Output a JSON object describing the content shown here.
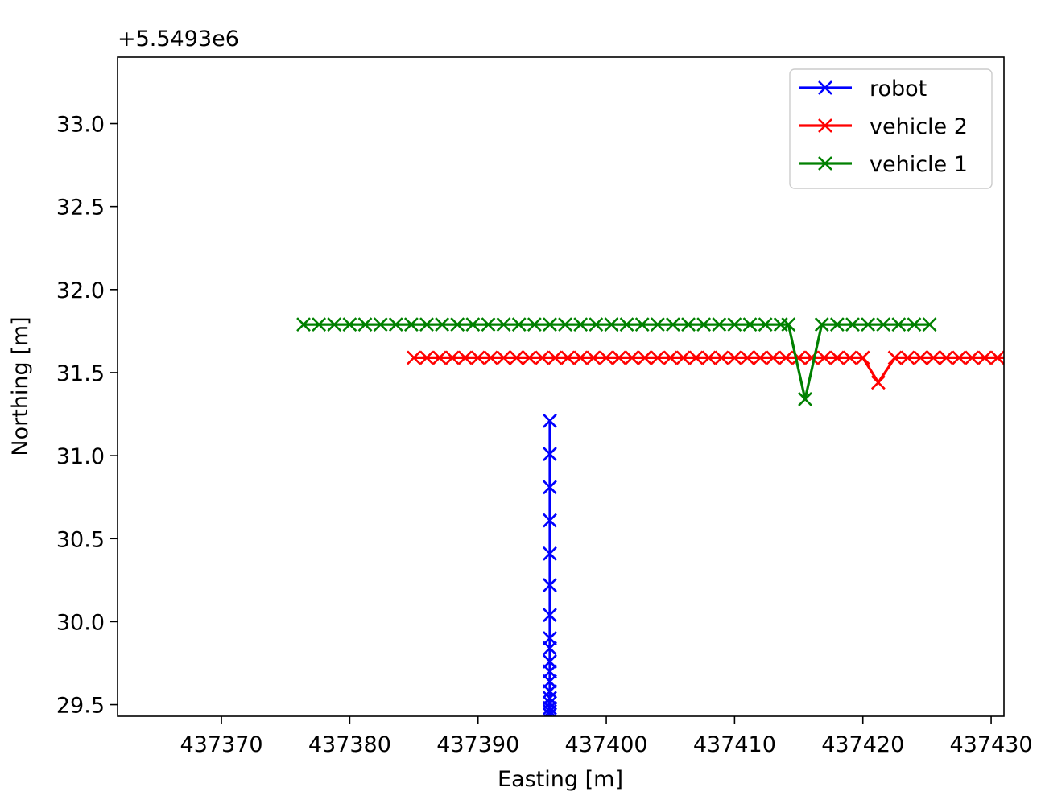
{
  "chart_data": {
    "type": "line",
    "title": "",
    "xlabel": "Easting [m]",
    "ylabel": "Northing [m]",
    "y_offset_label": "+5.5493e6",
    "xlim": [
      437361.9,
      437431.0
    ],
    "ylim": [
      29.43,
      33.4
    ],
    "xticks": [
      437370,
      437380,
      437390,
      437400,
      437410,
      437420,
      437430
    ],
    "xtick_labels": [
      "437370",
      "437380",
      "437390",
      "437400",
      "437410",
      "437420",
      "437430"
    ],
    "yticks": [
      29.5,
      30.0,
      30.5,
      31.0,
      31.5,
      32.0,
      32.5,
      33.0
    ],
    "ytick_labels": [
      "29.5",
      "30.0",
      "30.5",
      "31.0",
      "31.5",
      "32.0",
      "32.5",
      "33.0"
    ],
    "grid": false,
    "legend_position": "top-right",
    "series": [
      {
        "name": "robot",
        "color": "#0000ff",
        "marker": "x",
        "points": [
          [
            437395.6,
            31.21
          ],
          [
            437395.6,
            31.01
          ],
          [
            437395.6,
            30.81
          ],
          [
            437395.6,
            30.61
          ],
          [
            437395.6,
            30.41
          ],
          [
            437395.6,
            30.22
          ],
          [
            437395.6,
            30.04
          ],
          [
            437395.6,
            29.9
          ],
          [
            437395.6,
            29.84
          ],
          [
            437395.6,
            29.76
          ],
          [
            437395.6,
            29.7
          ],
          [
            437395.6,
            29.64
          ],
          [
            437395.6,
            29.58
          ],
          [
            437395.6,
            29.54
          ],
          [
            437395.6,
            29.51
          ],
          [
            437395.6,
            29.48
          ],
          [
            437395.6,
            29.46
          ],
          [
            437395.6,
            29.44
          ]
        ]
      },
      {
        "name": "vehicle 2",
        "color": "#ff0000",
        "marker": "x",
        "points": [
          [
            437385.0,
            31.59
          ],
          [
            437386.0,
            31.59
          ],
          [
            437387.0,
            31.59
          ],
          [
            437388.0,
            31.59
          ],
          [
            437389.0,
            31.59
          ],
          [
            437390.0,
            31.59
          ],
          [
            437391.0,
            31.59
          ],
          [
            437392.0,
            31.59
          ],
          [
            437393.0,
            31.59
          ],
          [
            437394.0,
            31.59
          ],
          [
            437395.0,
            31.59
          ],
          [
            437396.0,
            31.59
          ],
          [
            437397.0,
            31.59
          ],
          [
            437398.0,
            31.59
          ],
          [
            437399.0,
            31.59
          ],
          [
            437400.0,
            31.59
          ],
          [
            437401.0,
            31.59
          ],
          [
            437402.0,
            31.59
          ],
          [
            437403.0,
            31.59
          ],
          [
            437404.0,
            31.59
          ],
          [
            437405.0,
            31.59
          ],
          [
            437406.0,
            31.59
          ],
          [
            437407.0,
            31.59
          ],
          [
            437408.0,
            31.59
          ],
          [
            437409.0,
            31.59
          ],
          [
            437410.0,
            31.59
          ],
          [
            437411.0,
            31.59
          ],
          [
            437412.0,
            31.59
          ],
          [
            437413.0,
            31.59
          ],
          [
            437414.0,
            31.59
          ],
          [
            437415.0,
            31.59
          ],
          [
            437416.0,
            31.59
          ],
          [
            437417.0,
            31.59
          ],
          [
            437418.0,
            31.59
          ],
          [
            437419.0,
            31.59
          ],
          [
            437420.0,
            31.59
          ],
          [
            437421.2,
            31.44
          ],
          [
            437422.5,
            31.59
          ],
          [
            437423.5,
            31.59
          ],
          [
            437424.5,
            31.59
          ],
          [
            437425.5,
            31.59
          ],
          [
            437426.5,
            31.59
          ],
          [
            437427.5,
            31.59
          ],
          [
            437428.5,
            31.59
          ],
          [
            437429.5,
            31.59
          ],
          [
            437430.5,
            31.59
          ],
          [
            437431.5,
            31.59
          ]
        ]
      },
      {
        "name": "vehicle 1",
        "color": "#008000",
        "marker": "x",
        "points": [
          [
            437376.4,
            31.79
          ],
          [
            437377.6,
            31.79
          ],
          [
            437378.8,
            31.79
          ],
          [
            437380.0,
            31.79
          ],
          [
            437381.2,
            31.79
          ],
          [
            437382.4,
            31.79
          ],
          [
            437383.6,
            31.79
          ],
          [
            437384.8,
            31.79
          ],
          [
            437386.0,
            31.79
          ],
          [
            437387.2,
            31.79
          ],
          [
            437388.4,
            31.79
          ],
          [
            437389.6,
            31.79
          ],
          [
            437390.8,
            31.79
          ],
          [
            437392.0,
            31.79
          ],
          [
            437393.2,
            31.79
          ],
          [
            437394.4,
            31.79
          ],
          [
            437395.6,
            31.79
          ],
          [
            437396.8,
            31.79
          ],
          [
            437398.0,
            31.79
          ],
          [
            437399.2,
            31.79
          ],
          [
            437400.4,
            31.79
          ],
          [
            437401.6,
            31.79
          ],
          [
            437402.8,
            31.79
          ],
          [
            437404.0,
            31.79
          ],
          [
            437405.2,
            31.79
          ],
          [
            437406.4,
            31.79
          ],
          [
            437407.6,
            31.79
          ],
          [
            437408.8,
            31.79
          ],
          [
            437410.0,
            31.79
          ],
          [
            437411.2,
            31.79
          ],
          [
            437412.4,
            31.79
          ],
          [
            437413.6,
            31.79
          ],
          [
            437414.2,
            31.79
          ],
          [
            437415.5,
            31.34
          ],
          [
            437416.8,
            31.79
          ],
          [
            437418.0,
            31.79
          ],
          [
            437419.2,
            31.79
          ],
          [
            437420.4,
            31.79
          ],
          [
            437421.6,
            31.79
          ],
          [
            437422.8,
            31.79
          ],
          [
            437424.0,
            31.79
          ],
          [
            437425.2,
            31.79
          ]
        ]
      }
    ]
  }
}
